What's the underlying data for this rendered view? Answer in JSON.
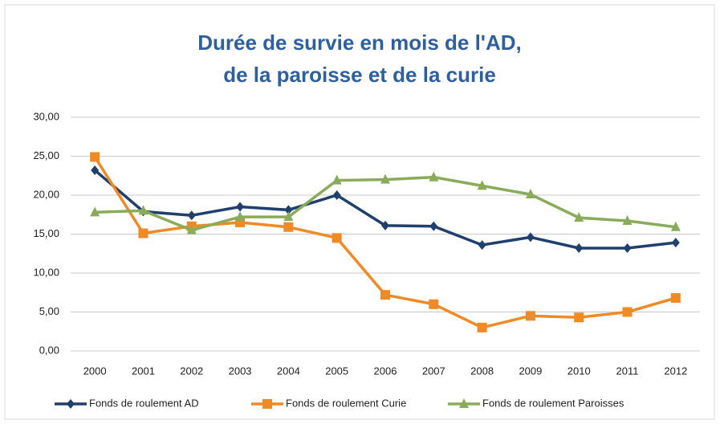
{
  "chart_data": {
    "type": "line",
    "title": [
      "Durée de survie en mois de l'AD,",
      "de la paroisse et de la curie"
    ],
    "categories": [
      "2000",
      "2001",
      "2002",
      "2003",
      "2004",
      "2005",
      "2006",
      "2007",
      "2008",
      "2009",
      "2010",
      "2011",
      "2012"
    ],
    "series": [
      {
        "name": "Fonds de roulement AD",
        "color": "#1f3f6e",
        "marker": "diamond",
        "values": [
          23.2,
          17.9,
          17.4,
          18.5,
          18.1,
          20.0,
          16.1,
          16.0,
          13.6,
          14.6,
          13.2,
          13.2,
          13.9
        ]
      },
      {
        "name": "Fonds de roulement Curie",
        "color": "#f08a24",
        "marker": "square",
        "values": [
          24.9,
          15.1,
          16.0,
          16.5,
          15.9,
          14.5,
          7.2,
          6.0,
          3.0,
          4.5,
          4.3,
          5.0,
          6.8
        ]
      },
      {
        "name": "Fonds de roulement Paroisses",
        "color": "#8aac5a",
        "marker": "triangle",
        "values": [
          17.8,
          18.0,
          15.5,
          17.2,
          17.2,
          21.9,
          22.0,
          22.3,
          21.2,
          20.1,
          17.1,
          16.7,
          15.9
        ]
      }
    ],
    "ylim": [
      0,
      30
    ],
    "yticks": [
      {
        "value": 0,
        "label": "0,00"
      },
      {
        "value": 5,
        "label": "5,00"
      },
      {
        "value": 10,
        "label": "10,00"
      },
      {
        "value": 15,
        "label": "15,00"
      },
      {
        "value": 20,
        "label": "20,00"
      },
      {
        "value": 25,
        "label": "25,00"
      },
      {
        "value": 30,
        "label": "30,00"
      }
    ],
    "grid": true,
    "legend": "bottom"
  }
}
